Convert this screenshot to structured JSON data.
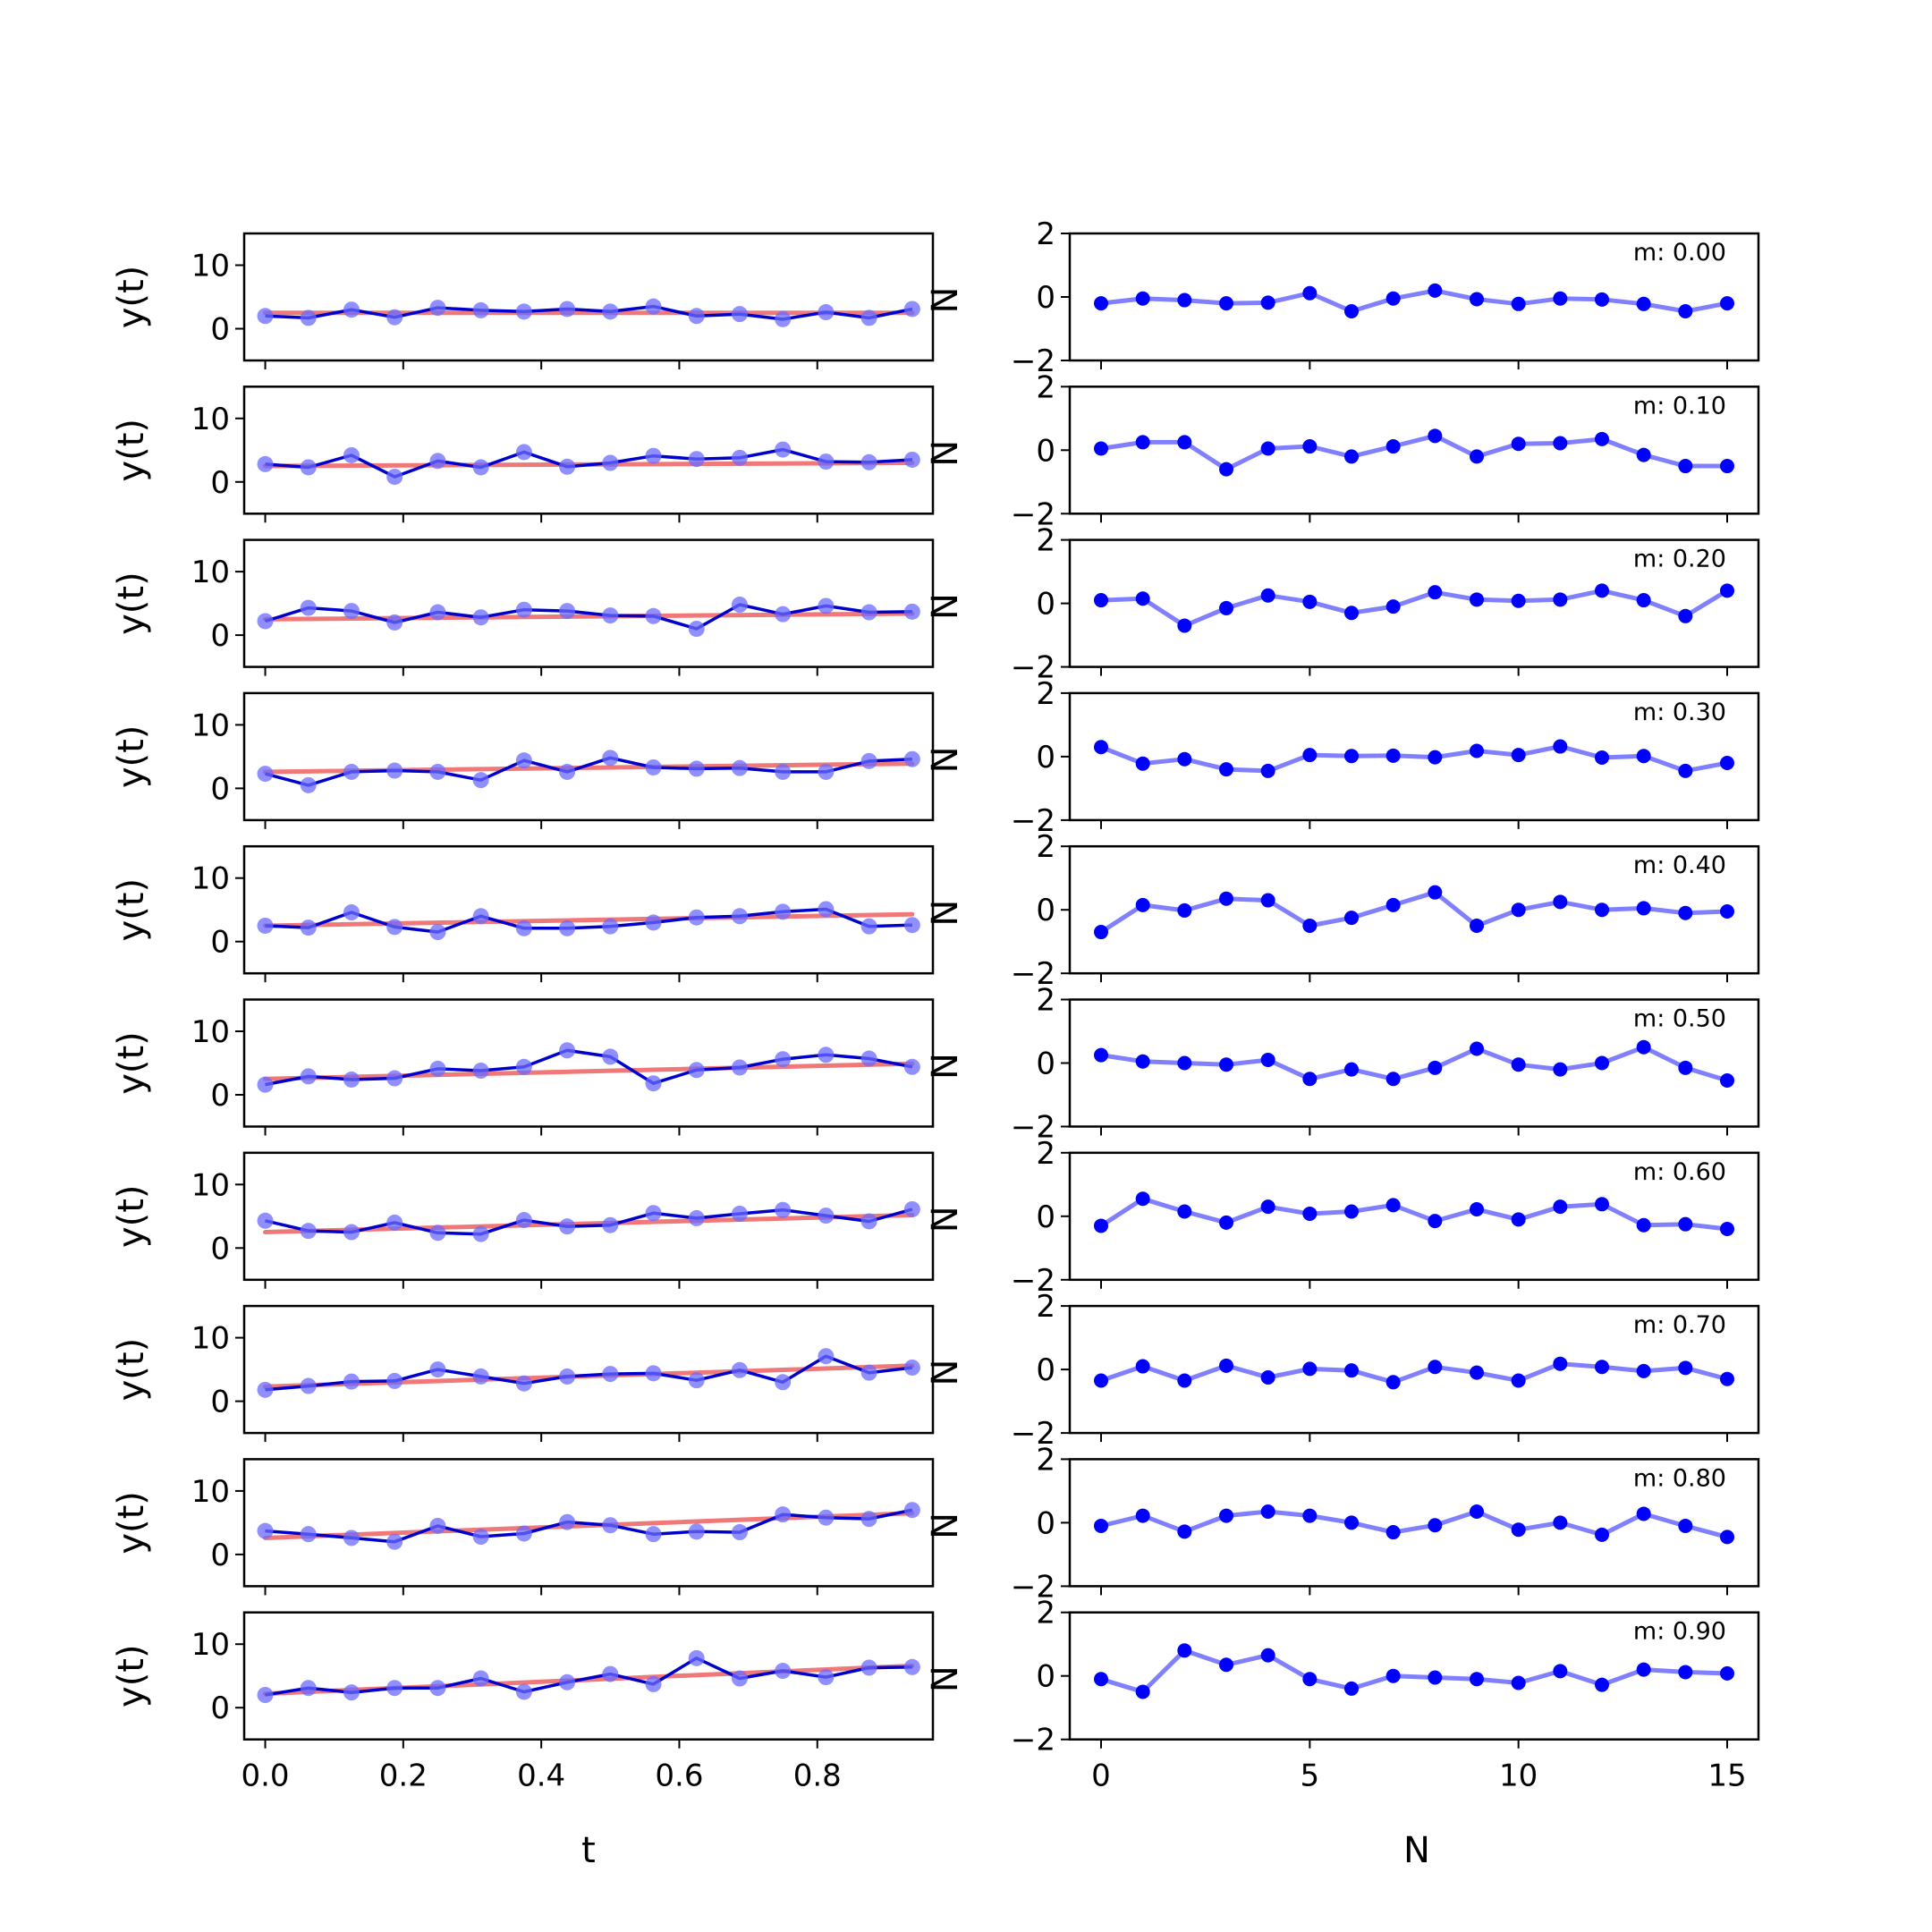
{
  "chart_data": {
    "type": "line",
    "left_panels": {
      "ylabel": "y(t)",
      "xlabel": "t",
      "ylim": [
        -5,
        15
      ],
      "xlim": [
        -0.0305,
        0.9675
      ],
      "yticks": [
        0,
        10
      ],
      "xticks": [
        0.0,
        0.2,
        0.4,
        0.6,
        0.8
      ],
      "xtick_labels": [
        "0.0",
        "0.2",
        "0.4",
        "0.6",
        "0.8"
      ],
      "right_edge_label": "N"
    },
    "right_panels": {
      "xlabel": "N",
      "ylim": [
        -2,
        2
      ],
      "xlim": [
        -0.75,
        15.75
      ],
      "yticks": [
        -2,
        0,
        2
      ],
      "ytick_labels": [
        "−2",
        "0",
        "2"
      ],
      "xticks": [
        0,
        5,
        10,
        15
      ],
      "xtick_labels": [
        "0",
        "5",
        "10",
        "15"
      ]
    },
    "t": [
      0.0,
      0.0625,
      0.125,
      0.1875,
      0.25,
      0.3125,
      0.375,
      0.4375,
      0.5,
      0.5625,
      0.625,
      0.6875,
      0.75,
      0.8125,
      0.875,
      0.9375
    ],
    "n": [
      0,
      1,
      2,
      3,
      4,
      5,
      6,
      7,
      8,
      9,
      10,
      11,
      12,
      13,
      14,
      15
    ],
    "colors": {
      "data": "#0000cc",
      "markers": "#6a6aff",
      "fit": "#f07878",
      "residual": "#8080ff",
      "residual_marker": "#0000ff"
    },
    "rows": [
      {
        "annotation": "m: 0.00",
        "m": 0.0,
        "y": [
          2.0,
          1.7,
          3.0,
          1.8,
          3.3,
          2.9,
          2.7,
          3.1,
          2.7,
          3.5,
          2.0,
          2.3,
          1.5,
          2.6,
          1.7,
          3.1
        ],
        "fit": [
          2.5,
          2.5
        ],
        "residual": [
          -0.2,
          -0.05,
          -0.1,
          -0.2,
          -0.18,
          0.12,
          -0.45,
          -0.05,
          0.2,
          -0.07,
          -0.22,
          -0.05,
          -0.08,
          -0.22,
          -0.45,
          -0.2
        ]
      },
      {
        "annotation": "m: 0.10",
        "m": 0.1,
        "y": [
          2.8,
          2.3,
          4.2,
          0.8,
          3.3,
          2.3,
          4.7,
          2.4,
          3.0,
          4.1,
          3.6,
          3.8,
          5.1,
          3.2,
          3.1,
          3.5
        ],
        "fit": [
          2.5,
          3.0
        ],
        "residual": [
          0.05,
          0.25,
          0.25,
          -0.6,
          0.05,
          0.12,
          -0.2,
          0.12,
          0.45,
          -0.2,
          0.2,
          0.22,
          0.35,
          -0.15,
          -0.5,
          -0.5
        ]
      },
      {
        "annotation": "m: 0.20",
        "m": 0.2,
        "y": [
          2.2,
          4.3,
          3.8,
          2.0,
          3.6,
          2.8,
          4.0,
          3.8,
          3.1,
          3.0,
          1.0,
          4.8,
          3.3,
          4.6,
          3.6,
          3.7
        ],
        "fit": [
          2.5,
          3.4
        ],
        "residual": [
          0.1,
          0.15,
          -0.7,
          -0.15,
          0.25,
          0.05,
          -0.3,
          -0.1,
          0.35,
          0.12,
          0.08,
          0.12,
          0.4,
          0.1,
          -0.4,
          0.4
        ]
      },
      {
        "annotation": "m: 0.30",
        "m": 0.3,
        "y": [
          2.3,
          0.5,
          2.6,
          2.8,
          2.6,
          1.3,
          4.4,
          2.6,
          4.8,
          3.3,
          3.1,
          3.2,
          2.6,
          2.6,
          4.3,
          4.6
        ],
        "fit": [
          2.6,
          3.9
        ],
        "residual": [
          0.3,
          -0.22,
          -0.08,
          -0.4,
          -0.45,
          0.05,
          0.02,
          0.03,
          -0.02,
          0.18,
          0.05,
          0.32,
          -0.03,
          0.02,
          -0.45,
          -0.2
        ]
      },
      {
        "annotation": "m: 0.40",
        "m": 0.4,
        "y": [
          2.5,
          2.2,
          4.6,
          2.3,
          1.5,
          4.0,
          2.1,
          2.1,
          2.4,
          3.0,
          3.8,
          4.0,
          4.7,
          5.1,
          2.4,
          2.6
        ],
        "fit": [
          2.5,
          4.3
        ],
        "residual": [
          -0.7,
          0.15,
          -0.02,
          0.35,
          0.3,
          -0.5,
          -0.25,
          0.15,
          0.55,
          -0.5,
          0.0,
          0.25,
          0.0,
          0.05,
          -0.1,
          -0.05
        ]
      },
      {
        "annotation": "m: 0.50",
        "m": 0.5,
        "y": [
          1.6,
          2.9,
          2.4,
          2.6,
          4.1,
          3.8,
          4.4,
          7.0,
          6.0,
          1.8,
          3.9,
          4.3,
          5.6,
          6.3,
          5.7,
          4.4
        ],
        "fit": [
          2.5,
          4.9
        ],
        "residual": [
          0.25,
          0.05,
          0.0,
          -0.05,
          0.1,
          -0.5,
          -0.2,
          -0.5,
          -0.15,
          0.45,
          -0.05,
          -0.2,
          0.0,
          0.5,
          -0.15,
          -0.55
        ]
      },
      {
        "annotation": "m: 0.60",
        "m": 0.6,
        "y": [
          4.3,
          2.7,
          2.5,
          4.0,
          2.4,
          2.2,
          4.4,
          3.4,
          3.6,
          5.5,
          4.7,
          5.4,
          6.0,
          5.1,
          4.2,
          6.1
        ],
        "fit": [
          2.5,
          5.2
        ],
        "residual": [
          -0.3,
          0.55,
          0.15,
          -0.2,
          0.3,
          0.08,
          0.15,
          0.35,
          -0.15,
          0.22,
          -0.1,
          0.3,
          0.38,
          -0.28,
          -0.25,
          -0.4
        ]
      },
      {
        "annotation": "m: 0.70",
        "m": 0.7,
        "y": [
          1.8,
          2.4,
          3.1,
          3.2,
          5.0,
          3.9,
          2.8,
          3.9,
          4.3,
          4.4,
          3.3,
          4.9,
          3.0,
          7.1,
          4.5,
          5.3
        ],
        "fit": [
          2.3,
          5.6
        ],
        "residual": [
          -0.35,
          0.1,
          -0.35,
          0.12,
          -0.25,
          0.02,
          -0.03,
          -0.4,
          0.08,
          -0.1,
          -0.35,
          0.18,
          0.08,
          -0.05,
          0.05,
          -0.3
        ]
      },
      {
        "annotation": "m: 0.80",
        "m": 0.8,
        "y": [
          3.7,
          3.2,
          2.6,
          2.0,
          4.5,
          2.8,
          3.3,
          5.1,
          4.6,
          3.2,
          3.6,
          3.5,
          6.3,
          5.8,
          5.6,
          7.0
        ],
        "fit": [
          2.6,
          6.5
        ],
        "residual": [
          -0.1,
          0.22,
          -0.28,
          0.22,
          0.35,
          0.22,
          0.0,
          -0.3,
          -0.08,
          0.35,
          -0.22,
          0.0,
          -0.38,
          0.28,
          -0.1,
          -0.45
        ]
      },
      {
        "annotation": "m: 0.90",
        "m": 0.9,
        "y": [
          2.0,
          3.1,
          2.4,
          3.1,
          3.1,
          4.6,
          2.5,
          4.0,
          5.3,
          3.7,
          7.8,
          4.6,
          5.8,
          4.8,
          6.3,
          6.4
        ],
        "fit": [
          2.2,
          6.6
        ],
        "residual": [
          -0.1,
          -0.5,
          0.8,
          0.35,
          0.65,
          -0.1,
          -0.4,
          0.0,
          -0.05,
          -0.1,
          -0.22,
          0.15,
          -0.28,
          0.2,
          0.12,
          0.08
        ]
      }
    ]
  }
}
